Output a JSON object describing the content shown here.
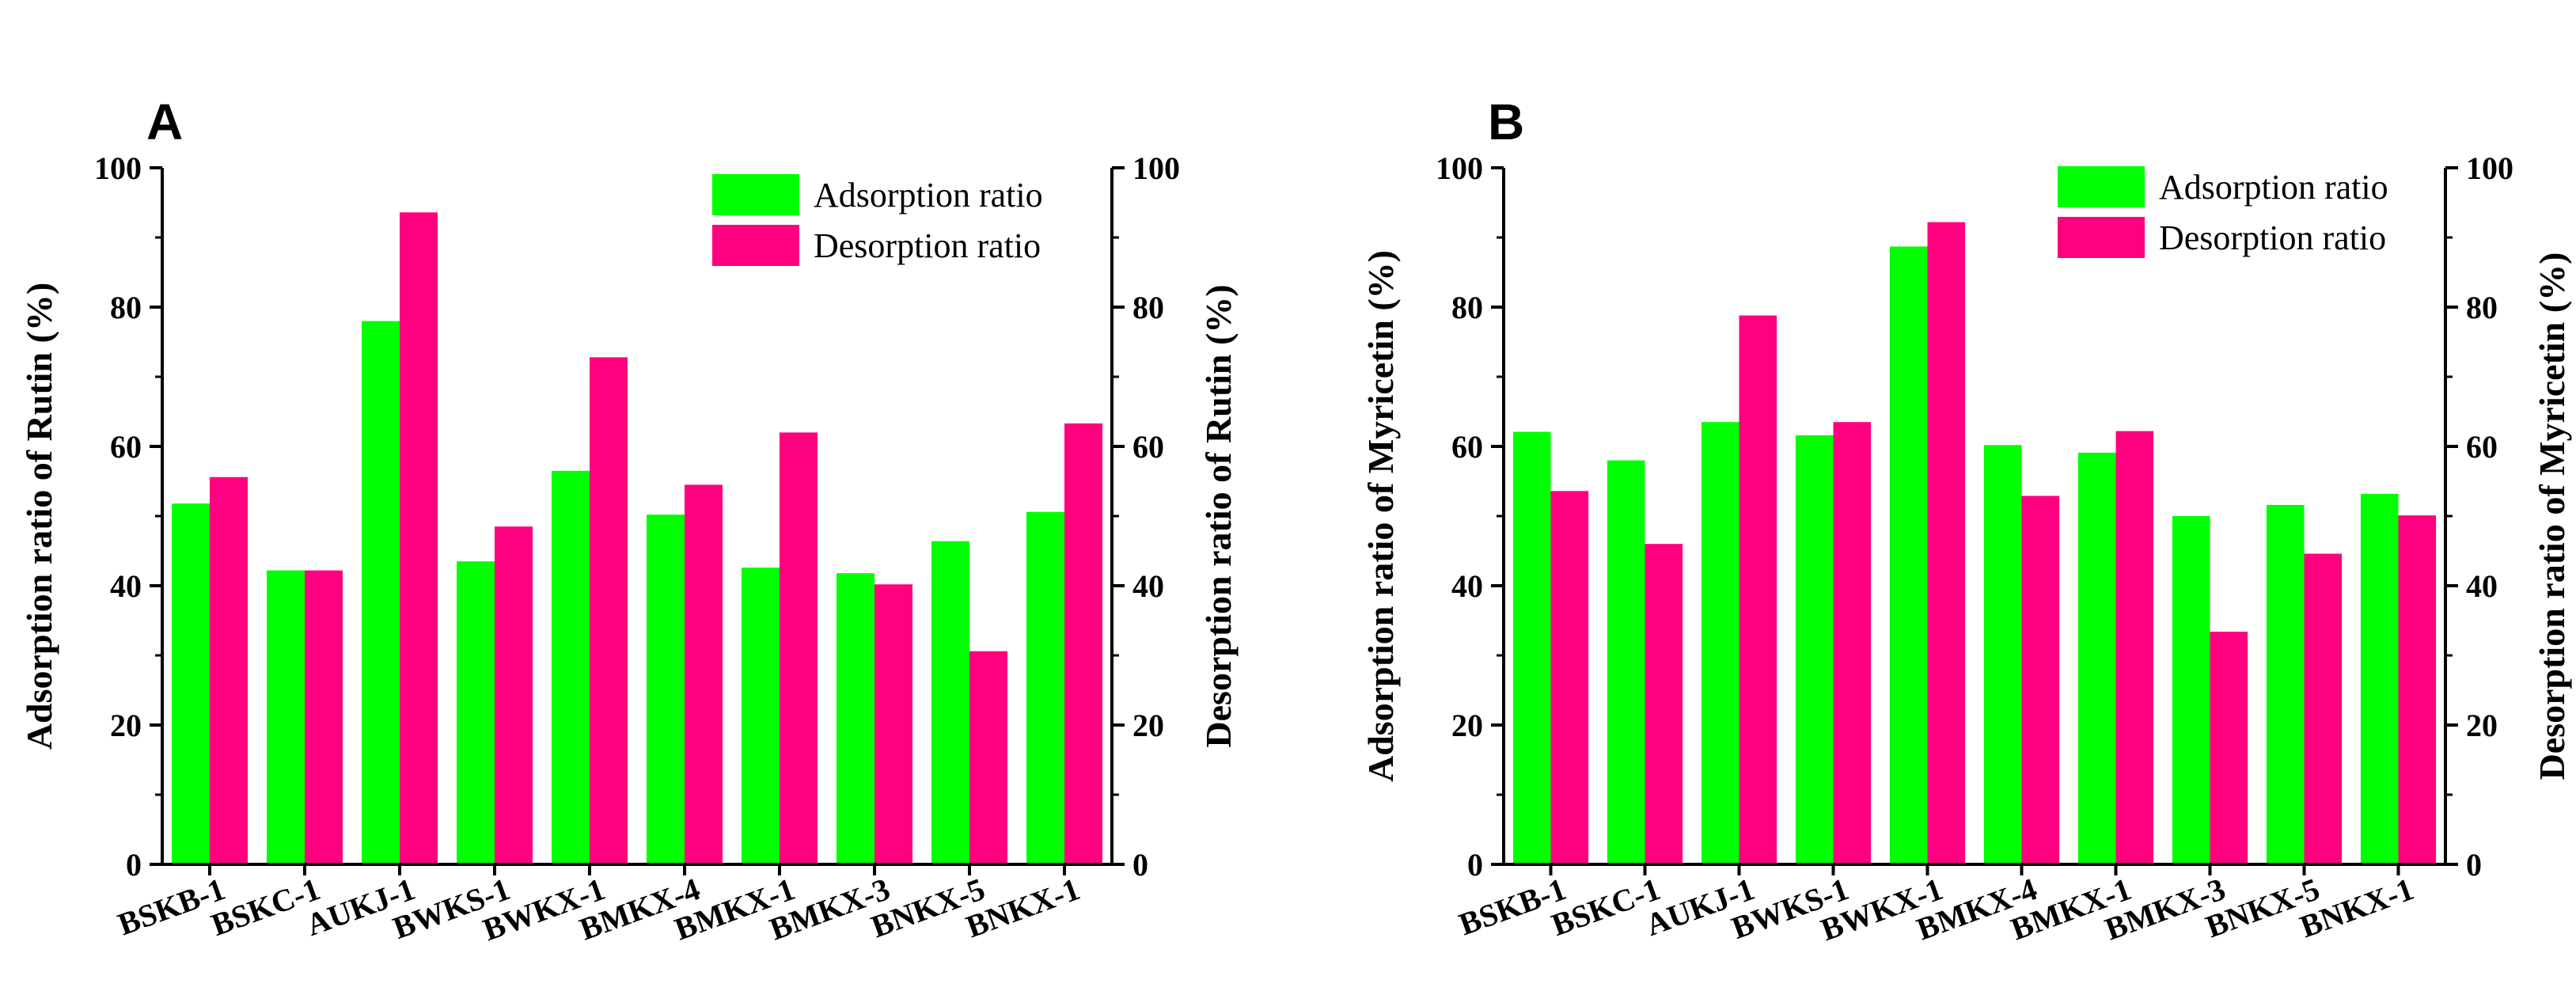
{
  "colors": {
    "adsorption": "#00FF00",
    "desorption": "#FF0080",
    "axis": "#000000"
  },
  "chart_data": [
    {
      "type": "bar",
      "panel_label": "A",
      "categories": [
        "BSKB-1",
        "BSKC-1",
        "AUKJ-1",
        "BWKS-1",
        "BWKX-1",
        "BMKX-4",
        "BMKX-1",
        "BMKX-3",
        "BNKX-5",
        "BNKX-1"
      ],
      "series": [
        {
          "name": "Adsorption ratio",
          "values": [
            51.8,
            42.2,
            78.0,
            43.5,
            56.5,
            50.2,
            42.6,
            41.8,
            46.4,
            50.6
          ]
        },
        {
          "name": "Desorption ratio",
          "values": [
            55.6,
            42.2,
            93.6,
            48.5,
            72.8,
            54.5,
            62.0,
            40.2,
            30.6,
            63.3
          ]
        }
      ],
      "ylabel": "Adsorption ratio of Rutin (%)",
      "y2label": "Desorption ratio of Rutin (%)",
      "ylim": [
        0,
        100
      ],
      "yticks": [
        "0",
        "20",
        "40",
        "60",
        "80",
        "100"
      ],
      "legend": "top-right"
    },
    {
      "type": "bar",
      "panel_label": "B",
      "categories": [
        "BSKB-1",
        "BSKC-1",
        "AUKJ-1",
        "BWKS-1",
        "BWKX-1",
        "BMKX-4",
        "BMKX-1",
        "BMKX-3",
        "BNKX-5",
        "BNKX-1"
      ],
      "series": [
        {
          "name": "Adsorption ratio",
          "values": [
            62.1,
            58.0,
            63.5,
            61.6,
            88.7,
            60.2,
            59.1,
            50.0,
            51.6,
            53.2
          ]
        },
        {
          "name": "Desorption ratio",
          "values": [
            53.6,
            46.0,
            78.8,
            63.5,
            92.2,
            52.9,
            62.2,
            33.4,
            44.6,
            50.1
          ]
        }
      ],
      "ylabel": "Adsorption ratio of Myricetin (%)",
      "y2label": "Desorption ratio of Myricetin (%)",
      "ylim": [
        0,
        100
      ],
      "yticks": [
        "0",
        "20",
        "40",
        "60",
        "80",
        "100"
      ],
      "legend": "top-right"
    }
  ]
}
